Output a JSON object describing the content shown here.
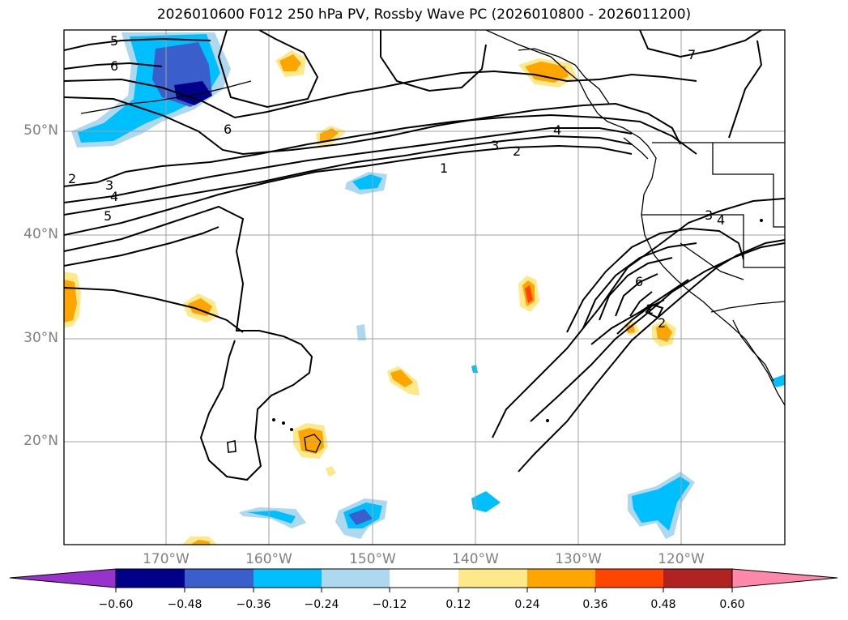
{
  "title": "2026010600 F012 250 hPa PV, Rossby Wave PC (2026010800 - 2026011200)",
  "colors": {
    "background": "#ffffff",
    "grid": "#a0a0a0",
    "coast": "#000000",
    "pos_weak": "#fde88a",
    "pos_mid": "#ffa500",
    "pos_strong": "#ff4500",
    "neg_weak": "#add8f0",
    "neg_mid": "#00bfff",
    "neg_strong": "#3a5fcd",
    "neg_max": "#00008b"
  },
  "map": {
    "latitude_labels": [
      "50°N",
      "40°N",
      "30°N",
      "20°N"
    ],
    "longitude_labels": [
      "170°W",
      "160°W",
      "150°W",
      "140°W",
      "130°W",
      "120°W"
    ],
    "contour_labels": [
      "5",
      "6",
      "2",
      "3",
      "4",
      "5",
      "6",
      "4",
      "3",
      "2",
      "1",
      "7",
      "3",
      "4",
      "6",
      "1",
      "2"
    ]
  },
  "colorbar": {
    "tick_labels": [
      "−0.60",
      "−0.48",
      "−0.36",
      "−0.24",
      "−0.12",
      "0.12",
      "0.24",
      "0.36",
      "0.48",
      "0.60"
    ],
    "bins": [
      {
        "label": "< -0.60",
        "color": "#9932cc"
      },
      {
        "label": "-0.60 to -0.48",
        "color": "#00008b"
      },
      {
        "label": "-0.48 to -0.36",
        "color": "#3a5fcd"
      },
      {
        "label": "-0.36 to -0.24",
        "color": "#00bfff"
      },
      {
        "label": "-0.24 to -0.12",
        "color": "#add8f0"
      },
      {
        "label": "-0.12 to 0.12",
        "color": "#ffffff"
      },
      {
        "label": "0.12 to 0.24",
        "color": "#fde88a"
      },
      {
        "label": "0.24 to 0.36",
        "color": "#ffa500"
      },
      {
        "label": "0.36 to 0.48",
        "color": "#ff4500"
      },
      {
        "label": "0.48 to 0.60",
        "color": "#b22222"
      },
      {
        "label": "> 0.60",
        "color": "#ff88aa"
      }
    ]
  }
}
